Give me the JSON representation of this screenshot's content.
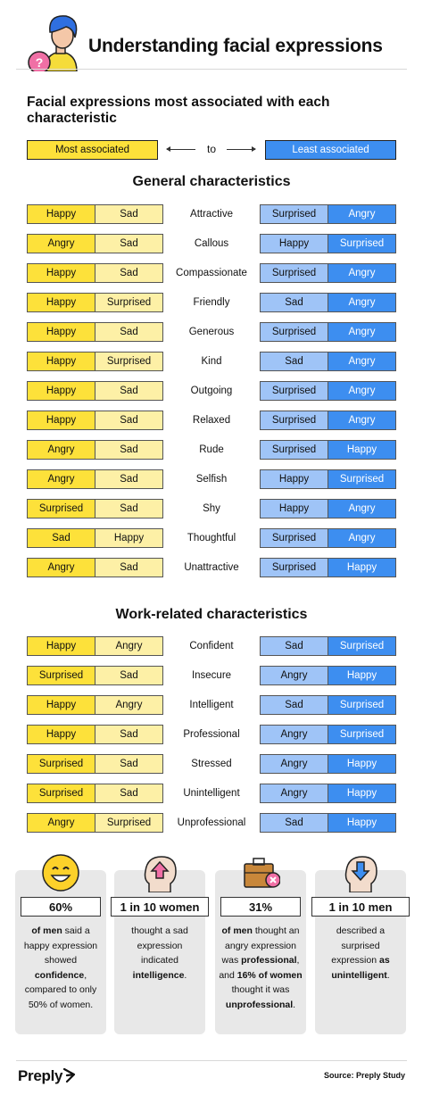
{
  "header": {
    "title": "Understanding facial expressions"
  },
  "subtitle": "Facial expressions most associated with each characteristic",
  "legend": {
    "most": "Most associated",
    "to": "to",
    "least": "Least associated"
  },
  "colors": {
    "most": "#fde13a",
    "most_light": "#fdf0a6",
    "least_light": "#9fc4f7",
    "least": "#3d8ef0"
  },
  "general": {
    "title": "General characteristics",
    "rows": [
      {
        "m1": "Happy",
        "m2": "Sad",
        "label": "Attractive",
        "l1": "Surprised",
        "l2": "Angry"
      },
      {
        "m1": "Angry",
        "m2": "Sad",
        "label": "Callous",
        "l1": "Happy",
        "l2": "Surprised"
      },
      {
        "m1": "Happy",
        "m2": "Sad",
        "label": "Compassionate",
        "l1": "Surprised",
        "l2": "Angry"
      },
      {
        "m1": "Happy",
        "m2": "Surprised",
        "label": "Friendly",
        "l1": "Sad",
        "l2": "Angry"
      },
      {
        "m1": "Happy",
        "m2": "Sad",
        "label": "Generous",
        "l1": "Surprised",
        "l2": "Angry"
      },
      {
        "m1": "Happy",
        "m2": "Surprised",
        "label": "Kind",
        "l1": "Sad",
        "l2": "Angry"
      },
      {
        "m1": "Happy",
        "m2": "Sad",
        "label": "Outgoing",
        "l1": "Surprised",
        "l2": "Angry"
      },
      {
        "m1": "Happy",
        "m2": "Sad",
        "label": "Relaxed",
        "l1": "Surprised",
        "l2": "Angry"
      },
      {
        "m1": "Angry",
        "m2": "Sad",
        "label": "Rude",
        "l1": "Surprised",
        "l2": "Happy"
      },
      {
        "m1": "Angry",
        "m2": "Sad",
        "label": "Selfish",
        "l1": "Happy",
        "l2": "Surprised"
      },
      {
        "m1": "Surprised",
        "m2": "Sad",
        "label": "Shy",
        "l1": "Happy",
        "l2": "Angry"
      },
      {
        "m1": "Sad",
        "m2": "Happy",
        "label": "Thoughtful",
        "l1": "Surprised",
        "l2": "Angry"
      },
      {
        "m1": "Angry",
        "m2": "Sad",
        "label": "Unattractive",
        "l1": "Surprised",
        "l2": "Happy"
      }
    ]
  },
  "work": {
    "title": "Work-related characteristics",
    "rows": [
      {
        "m1": "Happy",
        "m2": "Angry",
        "label": "Confident",
        "l1": "Sad",
        "l2": "Surprised"
      },
      {
        "m1": "Surprised",
        "m2": "Sad",
        "label": "Insecure",
        "l1": "Angry",
        "l2": "Happy"
      },
      {
        "m1": "Happy",
        "m2": "Angry",
        "label": "Intelligent",
        "l1": "Sad",
        "l2": "Surprised"
      },
      {
        "m1": "Happy",
        "m2": "Sad",
        "label": "Professional",
        "l1": "Angry",
        "l2": "Surprised"
      },
      {
        "m1": "Surprised",
        "m2": "Sad",
        "label": "Stressed",
        "l1": "Angry",
        "l2": "Happy"
      },
      {
        "m1": "Surprised",
        "m2": "Sad",
        "label": "Unintelligent",
        "l1": "Angry",
        "l2": "Happy"
      },
      {
        "m1": "Angry",
        "m2": "Surprised",
        "label": "Unprofessional",
        "l1": "Sad",
        "l2": "Happy"
      }
    ]
  },
  "stats": [
    {
      "icon": "smiley-face-icon",
      "value": "60%",
      "parts": [
        [
          "b",
          "of men"
        ],
        [
          "t",
          " said a happy expression showed "
        ],
        [
          "b",
          "confidence"
        ],
        [
          "t",
          ", compared to only 50% of women."
        ]
      ]
    },
    {
      "icon": "head-up-arrow-icon",
      "value": "1 in 10 women",
      "parts": [
        [
          "t",
          "thought a sad expression indicated "
        ],
        [
          "b",
          "intelligence"
        ],
        [
          "t",
          "."
        ]
      ]
    },
    {
      "icon": "briefcase-x-icon",
      "value": "31%",
      "parts": [
        [
          "b",
          "of men"
        ],
        [
          "t",
          " thought an angry expression was "
        ],
        [
          "b",
          "professional"
        ],
        [
          "t",
          ", and "
        ],
        [
          "b",
          "16% of women"
        ],
        [
          "t",
          " thought it was "
        ],
        [
          "b",
          "unprofessional"
        ],
        [
          "t",
          "."
        ]
      ]
    },
    {
      "icon": "head-down-arrow-icon",
      "value": "1 in 10 men",
      "parts": [
        [
          "t",
          "described a surprised expression "
        ],
        [
          "b",
          "as unintelligent"
        ],
        [
          "t",
          "."
        ]
      ]
    }
  ],
  "footer": {
    "brand": "Preply",
    "source": "Source: Preply Study"
  }
}
